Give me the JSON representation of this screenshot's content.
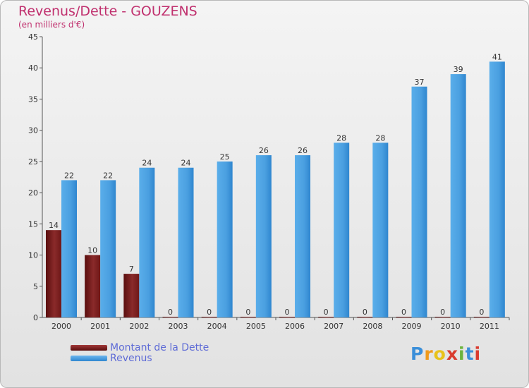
{
  "chart_data": {
    "type": "bar",
    "title": "Revenus/Dette - GOUZENS",
    "subtitle": "(en milliers d'€)",
    "xlabel": "",
    "ylabel": "",
    "ylim": [
      0,
      45
    ],
    "yticks": [
      0,
      5,
      10,
      15,
      20,
      25,
      30,
      35,
      40,
      45
    ],
    "grid": false,
    "categories": [
      "2000",
      "2001",
      "2002",
      "2003",
      "2004",
      "2005",
      "2006",
      "2007",
      "2008",
      "2009",
      "2010",
      "2011"
    ],
    "series": [
      {
        "name": "Montant de la Dette",
        "color": "#7a1e1e",
        "values": [
          14,
          10,
          7,
          0,
          0,
          0,
          0,
          0,
          0,
          0,
          0,
          0
        ]
      },
      {
        "name": "Revenus",
        "color": "#4a9fe0",
        "values": [
          22,
          22,
          24,
          24,
          25,
          26,
          26,
          28,
          28,
          37,
          39,
          41
        ]
      }
    ]
  },
  "logo": {
    "letters": [
      "P",
      "r",
      "o",
      "x",
      "i",
      "t",
      "i"
    ],
    "colors": [
      "#3b8fd9",
      "#f09a1a",
      "#e8c21a",
      "#d93a2e",
      "#6bb33b",
      "#3b8fd9",
      "#d93a2e"
    ]
  }
}
